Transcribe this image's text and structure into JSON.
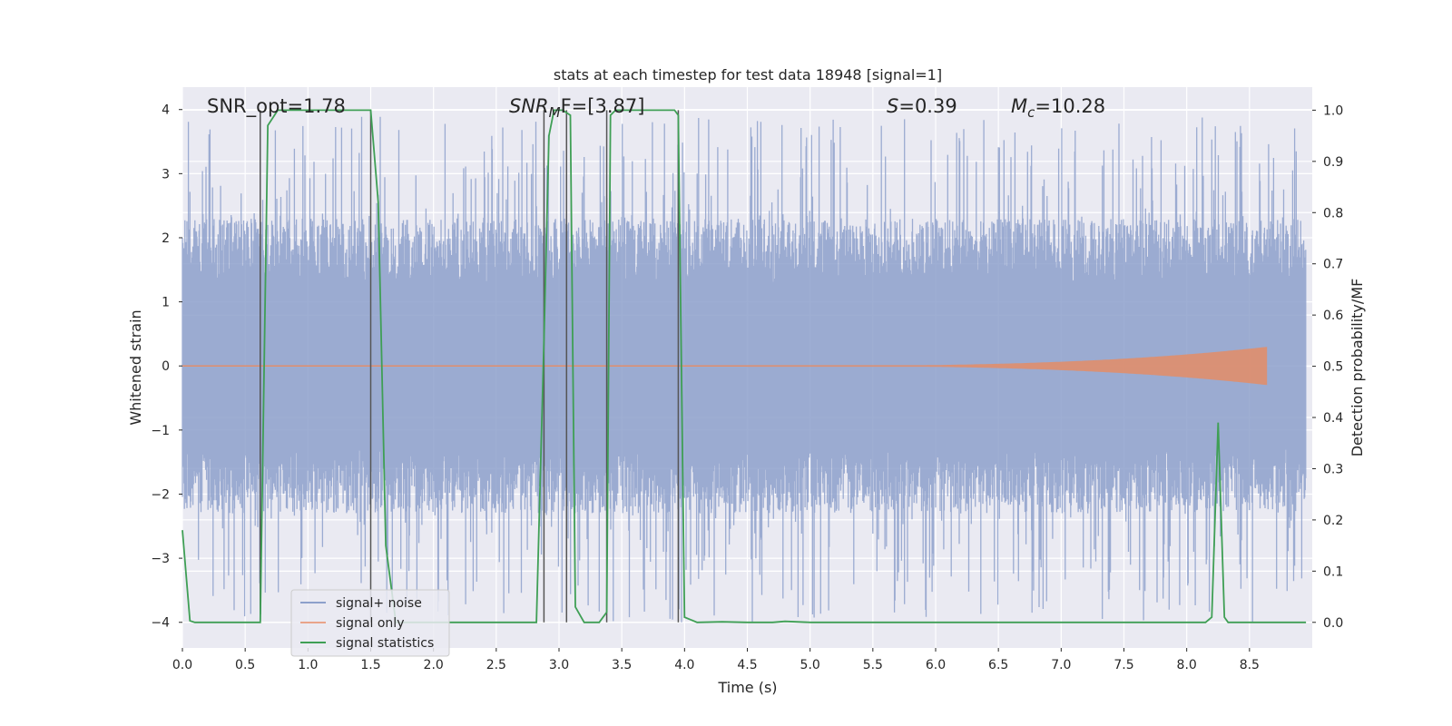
{
  "chart_data": {
    "type": "line",
    "title": "stats at each timestep for test data 18948 [signal=1]",
    "xlabel": "Time (s)",
    "ylabel_left": "Whitened strain",
    "ylabel_right": "Detection probability/MF",
    "xlim": [
      0.0,
      9.0
    ],
    "ylim_left": [
      -4.4,
      4.35
    ],
    "ylim_right": [
      -0.05,
      1.045
    ],
    "xticks": [
      "0.0",
      "0.5",
      "1.0",
      "1.5",
      "2.0",
      "2.5",
      "3.0",
      "3.5",
      "4.0",
      "4.5",
      "5.0",
      "5.5",
      "6.0",
      "6.5",
      "7.0",
      "7.5",
      "8.0",
      "8.5"
    ],
    "xtick_values": [
      0.0,
      0.5,
      1.0,
      1.5,
      2.0,
      2.5,
      3.0,
      3.5,
      4.0,
      4.5,
      5.0,
      5.5,
      6.0,
      6.5,
      7.0,
      7.5,
      8.0,
      8.5
    ],
    "yticks_left": [
      "4",
      "3",
      "2",
      "1",
      "0",
      "−1",
      "−2",
      "−3",
      "−4"
    ],
    "ytick_values_left": [
      4,
      3,
      2,
      1,
      0,
      -1,
      -2,
      -3,
      -4
    ],
    "yticks_right": [
      "1.0",
      "0.9",
      "0.8",
      "0.7",
      "0.6",
      "0.5",
      "0.4",
      "0.3",
      "0.2",
      "0.1",
      "0.0"
    ],
    "ytick_values_right": [
      1.0,
      0.9,
      0.8,
      0.7,
      0.6,
      0.5,
      0.4,
      0.3,
      0.2,
      0.1,
      0.0
    ],
    "annotations": {
      "snr_opt": "SNR_opt=1.78",
      "snr_mf_sym": "SNR",
      "snr_mf_sub": "M",
      "snr_mf_rest": "F=[3.87]",
      "s_sym": "S",
      "s_rest": "=0.39",
      "mc_sym": "M",
      "mc_sub": "c",
      "mc_rest": "=10.28"
    },
    "legend": {
      "position": "lower-left",
      "entries": [
        {
          "label": "signal+ noise",
          "color": "#8da0cb"
        },
        {
          "label": "signal only",
          "color": "#e9a48a"
        },
        {
          "label": "signal statistics",
          "color": "#3f9f55"
        }
      ]
    },
    "colors": {
      "noise": "#8da0cb",
      "signal": "#e08e6c",
      "stats": "#3f9f55",
      "vlines": "#555555",
      "bg": "#eaeaf2",
      "grid": "#ffffff"
    },
    "noise_amplitude": {
      "typical_max": 2.3,
      "peak_max": 3.9,
      "peak_min": -4.0
    },
    "signal_chirp": {
      "start_time": 4.5,
      "end_time": 8.65,
      "max_amplitude": 0.3
    },
    "vertical_lines": [
      0.62,
      1.5,
      2.88,
      3.06,
      3.38,
      3.95
    ],
    "series": [
      {
        "name": "signal statistics",
        "x": [
          0.0,
          0.06,
          0.1,
          0.2,
          0.3,
          0.4,
          0.5,
          0.6,
          0.62,
          0.68,
          0.76,
          0.85,
          1.0,
          1.2,
          1.4,
          1.5,
          1.56,
          1.62,
          1.7,
          1.9,
          2.2,
          2.5,
          2.75,
          2.82,
          2.88,
          2.92,
          2.96,
          3.03,
          3.09,
          3.13,
          3.2,
          3.32,
          3.38,
          3.41,
          3.45,
          3.6,
          3.8,
          3.92,
          3.95,
          4.0,
          4.1,
          4.3,
          4.5,
          4.7,
          4.8,
          5.0,
          5.5,
          6.0,
          6.5,
          7.0,
          7.5,
          8.0,
          8.15,
          8.2,
          8.25,
          8.3,
          8.33,
          8.5,
          8.8,
          8.95
        ],
        "y": [
          0.18,
          0.003,
          0.0,
          0.0,
          0.0,
          0.0,
          0.0,
          0.0,
          0.0,
          0.97,
          1.0,
          1.0,
          1.0,
          1.0,
          1.0,
          1.0,
          0.82,
          0.15,
          0.0,
          0.0,
          0.0,
          0.0,
          0.0,
          0.0,
          0.55,
          0.95,
          1.0,
          1.0,
          0.99,
          0.03,
          0.0,
          0.0,
          0.02,
          0.99,
          1.0,
          1.0,
          1.0,
          1.0,
          0.99,
          0.01,
          0.0,
          0.001,
          0.0,
          0.0,
          0.002,
          0.0,
          0.0,
          0.0,
          0.0,
          0.0,
          0.0,
          0.0,
          0.0,
          0.01,
          0.39,
          0.01,
          0.0,
          0.0,
          0.0,
          0.0
        ]
      }
    ]
  }
}
